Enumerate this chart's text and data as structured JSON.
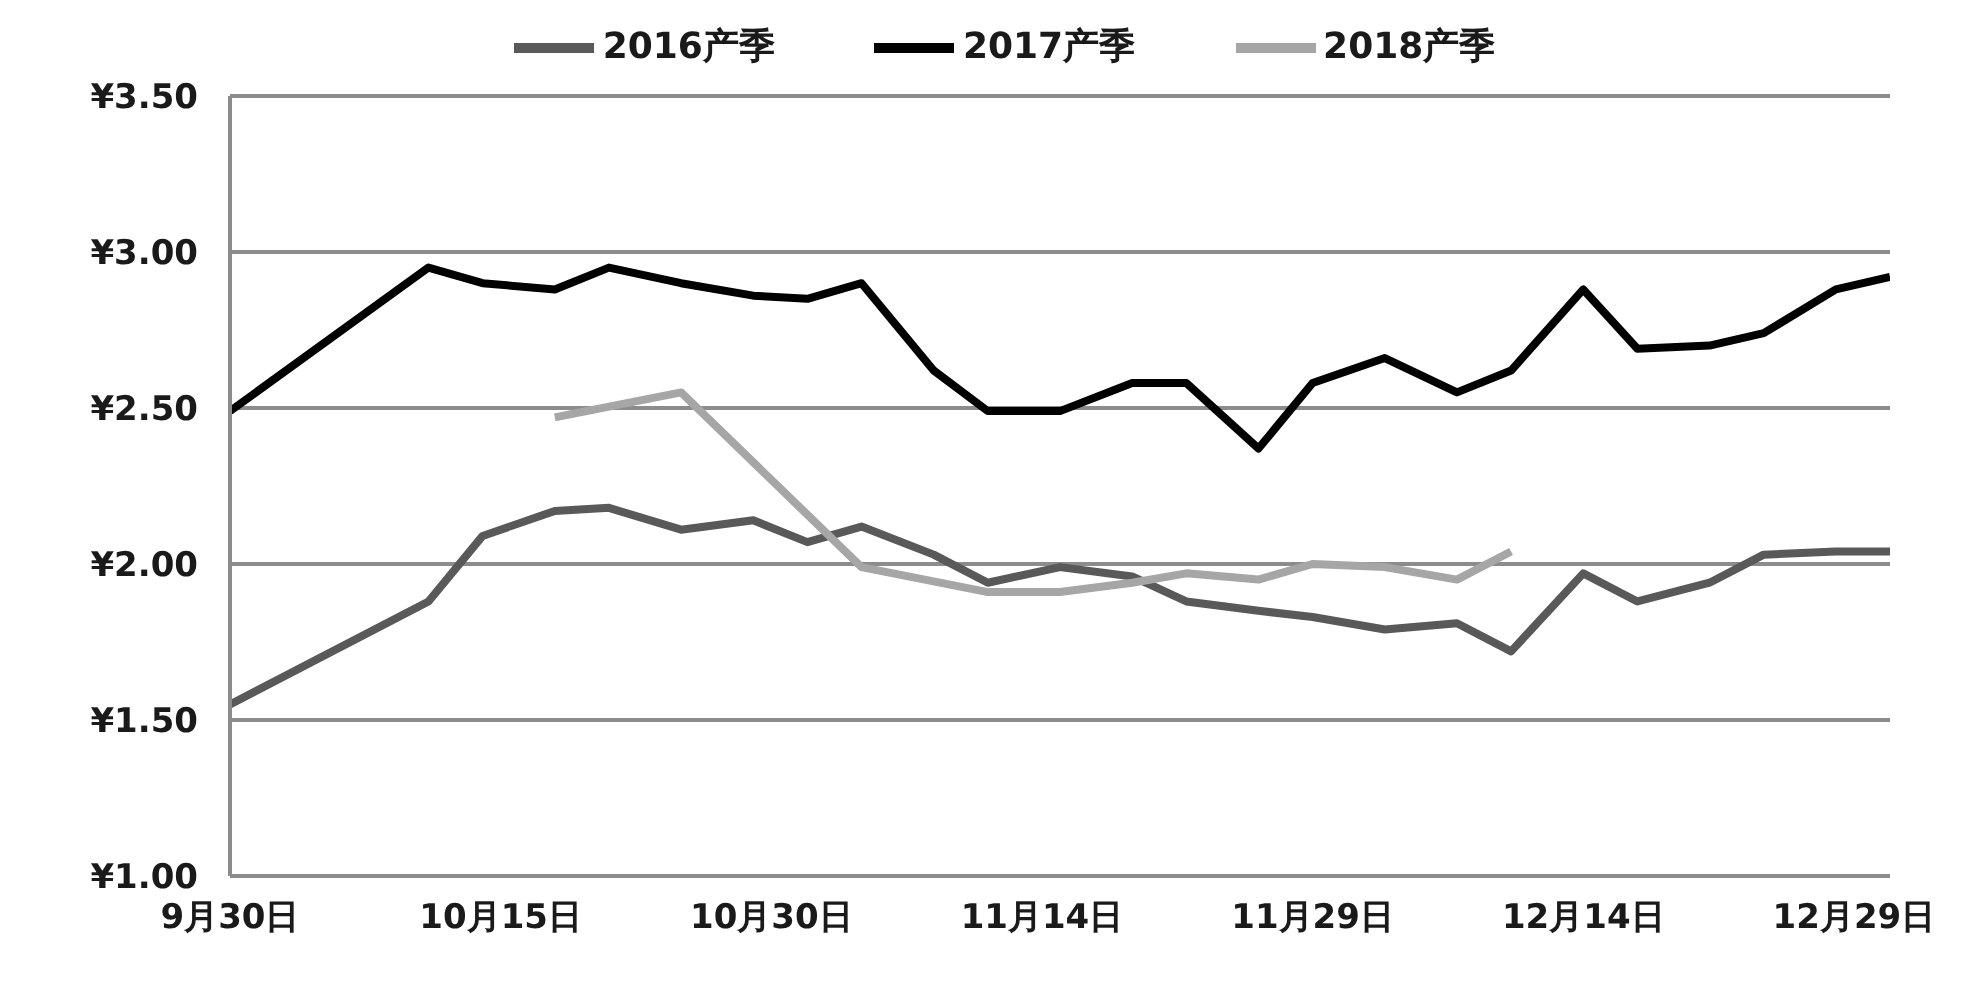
{
  "chart_data": {
    "type": "line",
    "legend": "top",
    "grid": "y",
    "marker": "none",
    "line_style": "solid",
    "xlim": [
      "--09-30",
      "--12-31"
    ],
    "xticks": [
      {
        "value": "--09-30",
        "label": "9月30日"
      },
      {
        "value": "--10-15",
        "label": "10月15日"
      },
      {
        "value": "--10-30",
        "label": "10月30日"
      },
      {
        "value": "--11-14",
        "label": "11月14日"
      },
      {
        "value": "--11-29",
        "label": "11月29日"
      },
      {
        "value": "--12-14",
        "label": "12月14日"
      },
      {
        "value": "--12-29",
        "label": "12月29日"
      }
    ],
    "ylim": [
      1,
      3.5
    ],
    "yticks": [
      {
        "value": 1,
        "label": "¥1.00"
      },
      {
        "value": 1.5,
        "label": "¥1.50"
      },
      {
        "value": 2,
        "label": "¥2.00"
      },
      {
        "value": 2.5,
        "label": "¥2.50"
      },
      {
        "value": 3,
        "label": "¥3.00"
      },
      {
        "value": 3.5,
        "label": "¥3.50"
      }
    ],
    "series": [
      {
        "name": "2016产季",
        "color": "#595959",
        "x": [
          "--09-30",
          "--10-11",
          "--10-14",
          "--10-18",
          "--10-21",
          "--10-25",
          "--10-29",
          "--11-01",
          "--11-04",
          "--11-08",
          "--11-11",
          "--11-15",
          "--11-19",
          "--11-22",
          "--11-26",
          "--11-29",
          "--12-03",
          "--12-07",
          "--12-10",
          "--12-14",
          "--12-17",
          "--12-21",
          "--12-24",
          "--12-28",
          "--12-31"
        ],
        "values": [
          1.55,
          1.88,
          2.09,
          2.17,
          2.18,
          2.11,
          2.14,
          2.07,
          2.12,
          2.03,
          1.94,
          1.99,
          1.96,
          1.88,
          1.85,
          1.83,
          1.79,
          1.81,
          1.72,
          1.97,
          1.88,
          1.94,
          2.03,
          2.04,
          2.04
        ]
      },
      {
        "name": "2017产季",
        "color": "#000000",
        "x": [
          "--09-30",
          "--10-11",
          "--10-14",
          "--10-18",
          "--10-21",
          "--10-25",
          "--10-29",
          "--11-01",
          "--11-04",
          "--11-08",
          "--11-11",
          "--11-15",
          "--11-19",
          "--11-22",
          "--11-26",
          "--11-29",
          "--12-03",
          "--12-07",
          "--12-10",
          "--12-14",
          "--12-17",
          "--12-21",
          "--12-24",
          "--12-28",
          "--12-31"
        ],
        "values": [
          2.49,
          2.95,
          2.9,
          2.88,
          2.95,
          2.9,
          2.86,
          2.85,
          2.9,
          2.62,
          2.49,
          2.49,
          2.58,
          2.58,
          2.37,
          2.58,
          2.66,
          2.55,
          2.62,
          2.88,
          2.69,
          2.7,
          2.74,
          2.88,
          2.92
        ]
      },
      {
        "name": "2018产季",
        "color": "#a6a6a6",
        "x": [
          "--10-18",
          "--10-25",
          "--11-04",
          "--11-11",
          "--11-15",
          "--11-19",
          "--11-22",
          "--11-26",
          "--11-29",
          "--12-03",
          "--12-07",
          "--12-10"
        ],
        "values": [
          2.47,
          2.55,
          1.99,
          1.91,
          1.91,
          1.94,
          1.97,
          1.95,
          2.0,
          1.99,
          1.95,
          2.04
        ]
      }
    ]
  }
}
